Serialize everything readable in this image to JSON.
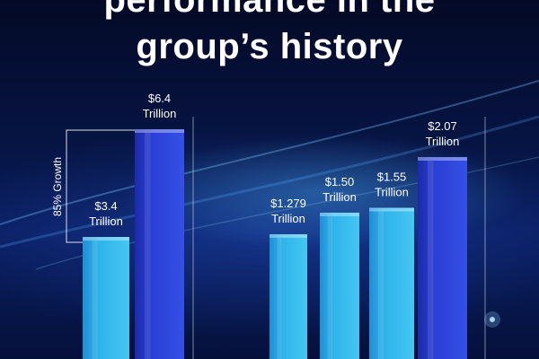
{
  "headline": {
    "line1": "performance in the",
    "line2": "group’s history"
  },
  "colors": {
    "bar_light": "#2fb4ea",
    "bar_dark": "#2a3fd6",
    "background": "#071648"
  },
  "chart_data": [
    {
      "type": "bar",
      "categories": [
        "",
        ""
      ],
      "values": [
        3.4,
        6.4
      ],
      "value_labels": [
        [
          "$3.4",
          "Trillion"
        ],
        [
          "$6.4",
          "Trillion"
        ]
      ],
      "unit": "Trillion",
      "annotation": "85% Growth",
      "ylim": [
        0,
        7.5
      ],
      "grid": false
    },
    {
      "type": "bar",
      "categories": [
        "",
        "",
        "",
        ""
      ],
      "values": [
        1.279,
        1.5,
        1.55,
        2.07
      ],
      "value_labels": [
        [
          "$1.279",
          "Trillion"
        ],
        [
          "$1.50",
          "Trillion"
        ],
        [
          "$1.55",
          "Trillion"
        ],
        [
          "$2.07",
          "Trillion"
        ]
      ],
      "unit": "Trillion",
      "ylim": [
        0,
        2.65
      ],
      "grid": false
    }
  ]
}
